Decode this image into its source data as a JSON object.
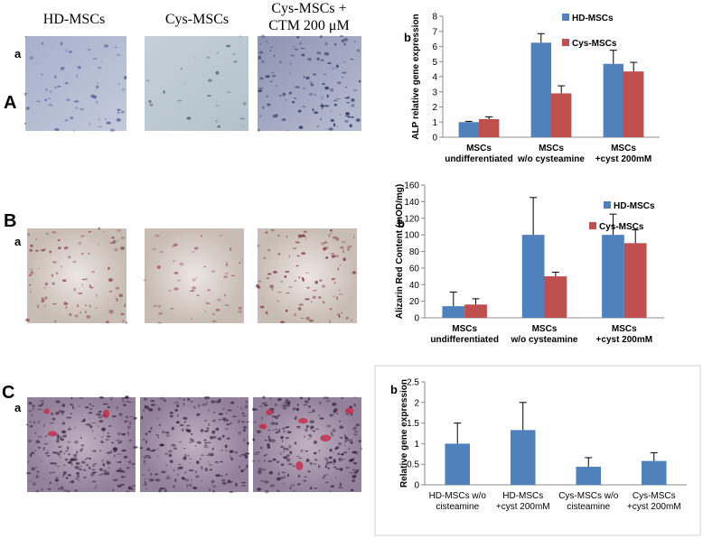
{
  "panel_labels": {
    "A": "A",
    "A_a": "a",
    "B": "B",
    "B_a": "a",
    "C": "C",
    "C_a": "a"
  },
  "image_captions": [
    "HD-MSCs",
    "Cys-MSCs",
    "Cys-MSCs +\nCTM 200 μM"
  ],
  "chart_data": [
    {
      "type": "bar",
      "panel": "b",
      "y_label": "ALP relative gene expression",
      "categories": [
        "MSCs\nundifferentiated",
        "MSCs\nw/o cysteamine",
        "MSCs\n+cyst 200mM"
      ],
      "series": [
        {
          "name": "HD-MSCs",
          "color": "#4f81bd",
          "values": [
            1,
            6.25,
            4.85
          ],
          "errors": [
            0.05,
            0.6,
            0.9
          ]
        },
        {
          "name": "Cys-MSCs",
          "color": "#c0504d",
          "values": [
            1.2,
            2.9,
            4.35
          ],
          "errors": [
            0.15,
            0.5,
            0.6
          ]
        }
      ],
      "ylim": [
        0,
        8
      ],
      "yticks": [
        0,
        1,
        2,
        3,
        4,
        5,
        6,
        7,
        8
      ],
      "grid": false
    },
    {
      "type": "bar",
      "panel": "b",
      "y_label": "Alizarin Red Content (mOD/mg)",
      "categories": [
        "MSCs\nundifferentiated",
        "MSCs\nw/o cysteamine",
        "MSCs\n+cyst 200mM"
      ],
      "series": [
        {
          "name": "HD-MSCs",
          "color": "#4f81bd",
          "values": [
            14,
            100,
            100
          ],
          "errors": [
            17,
            45,
            25
          ]
        },
        {
          "name": "Cys-MSCs",
          "color": "#c0504d",
          "values": [
            16,
            50,
            90
          ],
          "errors": [
            7,
            5,
            16
          ]
        }
      ],
      "ylim": [
        0,
        160
      ],
      "yticks": [
        0,
        20,
        40,
        60,
        80,
        100,
        120,
        140,
        160
      ],
      "grid": false
    },
    {
      "type": "bar",
      "panel": "b",
      "y_label": "Relative gene expression",
      "categories": [
        "HD-MSCs w/o\ncisteamine",
        "HD-MSCs\n+cyst 200mM",
        "Cys-MSCs w/o\ncisteamine",
        "Cys-MSCs\n+cyst 200mM"
      ],
      "series": [
        {
          "color": "#4f81bd",
          "values": [
            1,
            1.33,
            0.44,
            0.58
          ],
          "errors": [
            0.5,
            0.67,
            0.22,
            0.2
          ]
        }
      ],
      "ylim": [
        0,
        2.5
      ],
      "yticks": [
        0,
        0.5,
        1,
        1.5,
        2,
        2.5
      ],
      "grid": false
    }
  ]
}
